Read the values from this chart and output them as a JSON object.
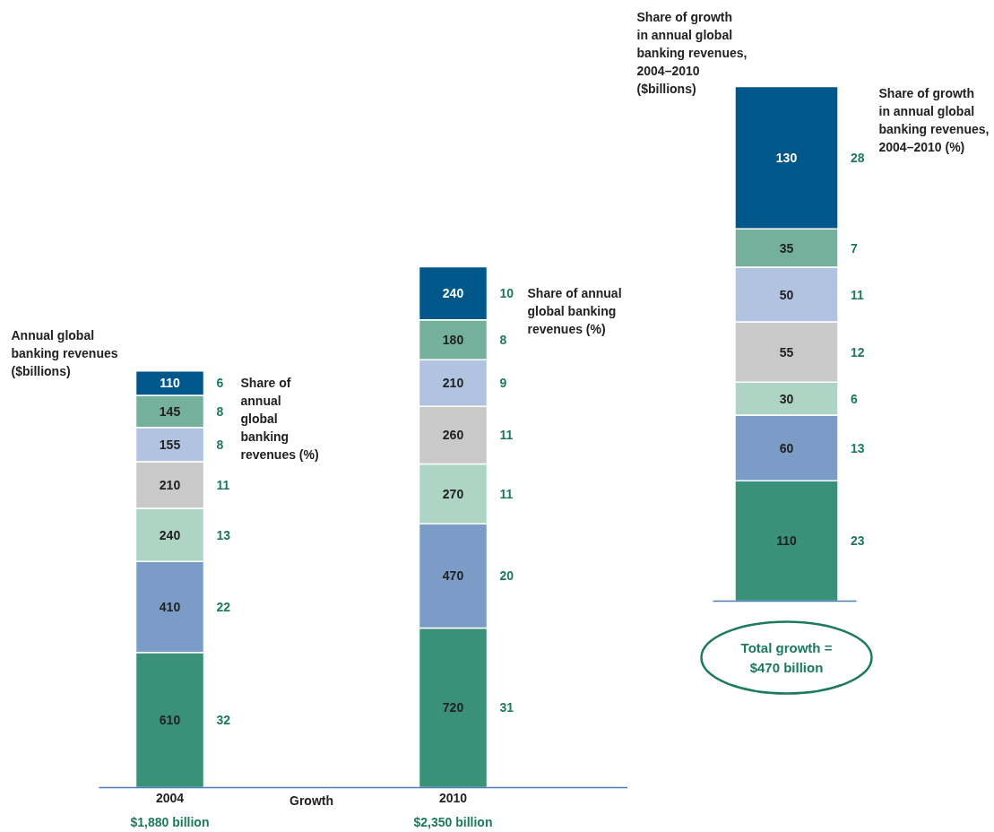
{
  "chart_data": [
    {
      "type": "bar",
      "stacked": true,
      "data_labels": true,
      "grid": false,
      "ylabel": "Annual global banking revenues ($billions)",
      "categories": [
        "2004",
        "Growth",
        "2010"
      ],
      "totals": [
        "$1,880 billion",
        null,
        "$2,350 billion"
      ],
      "series": [
        {
          "color": "#3a9179",
          "values": [
            610,
            null,
            720
          ]
        },
        {
          "color": "#7a9cc6",
          "values": [
            410,
            null,
            470
          ]
        },
        {
          "color": "#aed4c5",
          "values": [
            240,
            null,
            270
          ]
        },
        {
          "color": "#c9c9c9",
          "values": [
            210,
            null,
            260
          ]
        },
        {
          "color": "#b1c3e0",
          "values": [
            155,
            null,
            210
          ]
        },
        {
          "color": "#74b09b",
          "values": [
            145,
            null,
            180
          ]
        },
        {
          "color": "#00578a",
          "values": [
            110,
            null,
            240
          ]
        }
      ],
      "annotations": [
        "Share of annual global banking revenues (%)",
        "Share of annual global banking revenues (%)",
        "32",
        "22",
        "13",
        "11",
        "8",
        "8",
        "6",
        "31",
        "20",
        "11",
        "11",
        "9",
        "8",
        "10"
      ]
    },
    {
      "type": "bar",
      "stacked": true,
      "data_labels": true,
      "grid": false,
      "ylabel": "Share of growth in annual global banking revenues, 2004–2010 ($billions)",
      "categories": [
        null
      ],
      "series": [
        {
          "color": "#3a9179",
          "values": [
            110
          ]
        },
        {
          "color": "#7a9cc6",
          "values": [
            60
          ]
        },
        {
          "color": "#aed4c5",
          "values": [
            30
          ]
        },
        {
          "color": "#c9c9c9",
          "values": [
            55
          ]
        },
        {
          "color": "#b1c3e0",
          "values": [
            50
          ]
        },
        {
          "color": "#74b09b",
          "values": [
            35
          ]
        },
        {
          "color": "#00578a",
          "values": [
            130
          ]
        }
      ],
      "annotations": [
        "Share of growth in annual global banking revenues, 2004–2010 (%)",
        "Total growth = $470 billion",
        "23",
        "13",
        "6",
        "12",
        "11",
        "7",
        "28"
      ]
    }
  ]
}
